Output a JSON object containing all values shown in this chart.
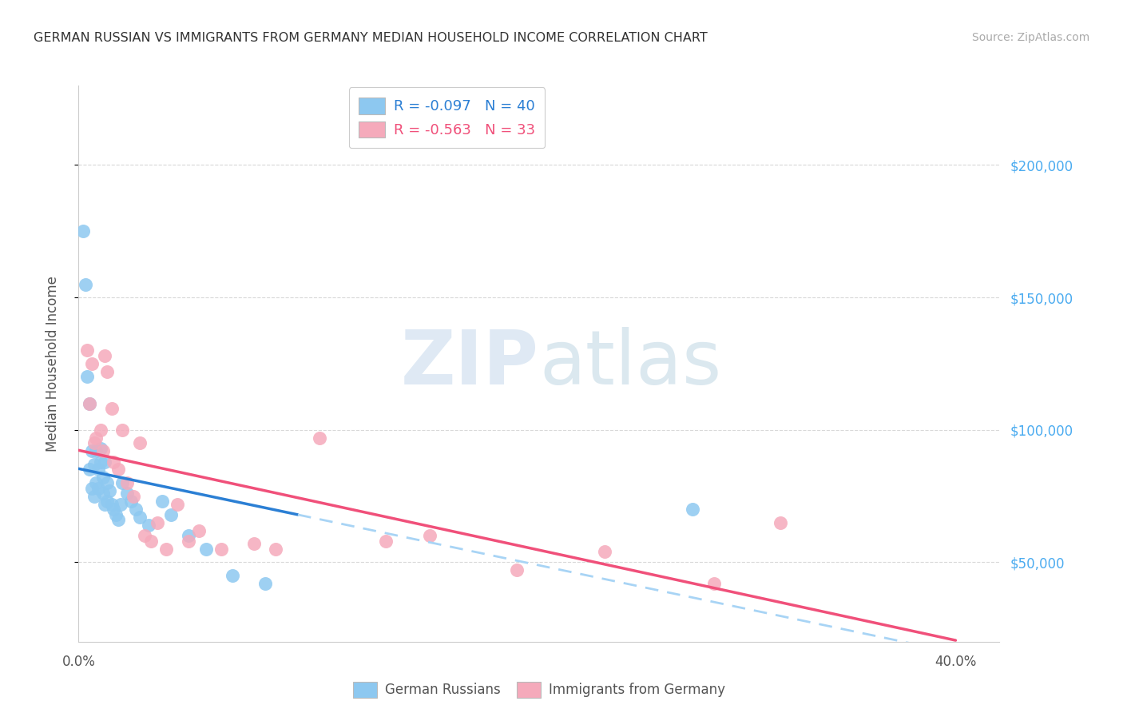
{
  "title": "GERMAN RUSSIAN VS IMMIGRANTS FROM GERMANY MEDIAN HOUSEHOLD INCOME CORRELATION CHART",
  "source": "Source: ZipAtlas.com",
  "ylabel": "Median Household Income",
  "yticks": [
    50000,
    100000,
    150000,
    200000
  ],
  "ytick_labels": [
    "$50,000",
    "$100,000",
    "$150,000",
    "$200,000"
  ],
  "xticks": [
    0.0,
    0.1,
    0.2,
    0.3,
    0.4
  ],
  "xtick_labels": [
    "0.0%",
    "",
    "",
    "",
    "40.0%"
  ],
  "xlim": [
    0.0,
    0.42
  ],
  "ylim": [
    20000,
    230000
  ],
  "watermark_text": "ZIPatlas",
  "blue_R": "-0.097",
  "blue_N": "40",
  "pink_R": "-0.563",
  "pink_N": "33",
  "blue_scatter_x": [
    0.002,
    0.003,
    0.004,
    0.005,
    0.005,
    0.006,
    0.006,
    0.007,
    0.007,
    0.008,
    0.008,
    0.009,
    0.009,
    0.01,
    0.01,
    0.011,
    0.011,
    0.012,
    0.012,
    0.013,
    0.013,
    0.014,
    0.015,
    0.016,
    0.017,
    0.018,
    0.019,
    0.02,
    0.022,
    0.024,
    0.026,
    0.028,
    0.032,
    0.038,
    0.042,
    0.05,
    0.058,
    0.07,
    0.085,
    0.28
  ],
  "blue_scatter_y": [
    175000,
    155000,
    120000,
    110000,
    85000,
    92000,
    78000,
    87000,
    75000,
    92000,
    80000,
    85000,
    78000,
    93000,
    88000,
    82000,
    76000,
    88000,
    72000,
    80000,
    73000,
    77000,
    72000,
    70000,
    68000,
    66000,
    72000,
    80000,
    76000,
    73000,
    70000,
    67000,
    64000,
    73000,
    68000,
    60000,
    55000,
    45000,
    42000,
    70000
  ],
  "pink_scatter_x": [
    0.004,
    0.005,
    0.006,
    0.007,
    0.008,
    0.01,
    0.011,
    0.012,
    0.013,
    0.015,
    0.016,
    0.018,
    0.02,
    0.022,
    0.025,
    0.028,
    0.03,
    0.033,
    0.036,
    0.04,
    0.045,
    0.05,
    0.055,
    0.065,
    0.08,
    0.09,
    0.11,
    0.14,
    0.16,
    0.2,
    0.24,
    0.29,
    0.32
  ],
  "pink_scatter_y": [
    130000,
    110000,
    125000,
    95000,
    97000,
    100000,
    92000,
    128000,
    122000,
    108000,
    88000,
    85000,
    100000,
    80000,
    75000,
    95000,
    60000,
    58000,
    65000,
    55000,
    72000,
    58000,
    62000,
    55000,
    57000,
    55000,
    97000,
    58000,
    60000,
    47000,
    54000,
    42000,
    65000
  ],
  "blue_color": "#8DC8F0",
  "pink_color": "#F5AABB",
  "blue_line_color": "#2B7FD4",
  "pink_line_color": "#F0507A",
  "dashed_line_color": "#A8D4F5",
  "background_color": "#FFFFFF",
  "grid_color": "#D8D8D8",
  "title_color": "#333333",
  "source_color": "#AAAAAA",
  "ytick_color": "#4AABF0"
}
